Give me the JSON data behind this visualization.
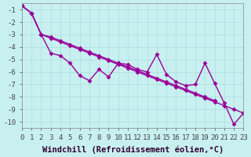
{
  "background_color": "#c8f0f0",
  "line_color": "#990099",
  "marker": "D",
  "markersize": 3,
  "linewidth": 1,
  "xlim": [
    0,
    23
  ],
  "ylim": [
    -10.5,
    -0.5
  ],
  "xlabel": "Windchill (Refroidissement éolien,°C)",
  "xlabel_fontsize": 7.5,
  "tick_fontsize": 6.5,
  "grid_color": "#aadddd",
  "y_main": [
    -0.7,
    -1.3,
    -3.0,
    -4.5,
    -4.7,
    -5.3,
    -6.3,
    -6.7,
    -5.8,
    -6.4,
    -5.3,
    -5.4,
    -5.8,
    -6.0,
    -4.6,
    -6.2,
    -6.8,
    -7.1,
    -7.0,
    -5.3,
    -6.9,
    -8.5,
    -10.2,
    -9.3
  ],
  "y_trend1": [
    -0.7,
    -1.3,
    -3.0,
    -3.3,
    -3.6,
    -3.9,
    -4.2,
    -4.5,
    -4.8,
    -5.1,
    -5.4,
    -5.7,
    -6.0,
    -6.3,
    -6.6,
    -6.9,
    -7.2,
    -7.5,
    -7.8,
    -8.1,
    -8.4,
    -8.7,
    -9.0,
    -9.3
  ],
  "y_trend2": [
    -0.7,
    -1.3,
    -3.0,
    -3.2,
    -3.5,
    -3.8,
    -4.1,
    -4.4,
    -4.7,
    -5.0,
    -5.3,
    -5.6,
    -5.9,
    -6.2,
    -6.5,
    -6.8,
    -7.1,
    -7.4,
    -7.7,
    -8.0,
    -8.3,
    null,
    null,
    null
  ],
  "x_trend2_end": 20,
  "xtick_labels": [
    "0",
    "1",
    "2",
    "3",
    "4",
    "5",
    "6",
    "7",
    "8",
    "9",
    "10",
    "11",
    "12",
    "13",
    "14",
    "15",
    "16",
    "17",
    "18",
    "19",
    "20",
    "21",
    "22",
    "23"
  ],
  "ytick_labels": [
    "-1",
    "-2",
    "-3",
    "-4",
    "-5",
    "-6",
    "-7",
    "-8",
    "-9",
    "-10"
  ],
  "ytick_vals": [
    -1,
    -2,
    -3,
    -4,
    -5,
    -6,
    -7,
    -8,
    -9,
    -10
  ]
}
